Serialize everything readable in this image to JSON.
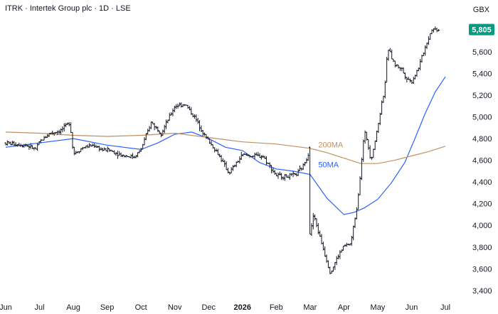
{
  "header": {
    "title": "ITRK · Intertek Group plc · 1D · LSE",
    "currency": "GBX"
  },
  "chart_data": {
    "type": "line",
    "title": "ITRK · Intertek Group plc · 1D · LSE",
    "xlabel": "",
    "ylabel": "",
    "ylim": [
      3340,
      5960
    ],
    "grid": false,
    "y_ticks": [
      "3,400",
      "3,600",
      "3,800",
      "4,000",
      "4,200",
      "4,400",
      "4,600",
      "4,800",
      "5,000",
      "5,200",
      "5,400",
      "5,600"
    ],
    "x_ticks": [
      {
        "label": "Jun",
        "pos": 0,
        "bold": false
      },
      {
        "label": "Jul",
        "pos": 1,
        "bold": false
      },
      {
        "label": "Aug",
        "pos": 2,
        "bold": false
      },
      {
        "label": "Sep",
        "pos": 3,
        "bold": false
      },
      {
        "label": "Oct",
        "pos": 4,
        "bold": false
      },
      {
        "label": "Nov",
        "pos": 5,
        "bold": false
      },
      {
        "label": "Dec",
        "pos": 6,
        "bold": false
      },
      {
        "label": "2026",
        "pos": 7,
        "bold": true
      },
      {
        "label": "Feb",
        "pos": 8,
        "bold": false
      },
      {
        "label": "Mar",
        "pos": 9,
        "bold": false
      },
      {
        "label": "Apr",
        "pos": 10,
        "bold": false
      },
      {
        "label": "May",
        "pos": 11,
        "bold": false
      },
      {
        "label": "Jun",
        "pos": 12,
        "bold": false
      },
      {
        "label": "Jul",
        "pos": 13,
        "bold": false
      }
    ],
    "last_price": "5,805",
    "price_series": {
      "name": "",
      "color": "#131722",
      "x": [
        0,
        0.3,
        0.6,
        0.9,
        1.0,
        1.3,
        1.6,
        1.9,
        2.0,
        2.3,
        2.6,
        2.9,
        3.0,
        3.4,
        3.8,
        4.0,
        4.3,
        4.6,
        5.0,
        5.3,
        5.6,
        5.9,
        6.0,
        6.3,
        6.6,
        7.0,
        7.3,
        7.6,
        8.0,
        8.3,
        8.6,
        8.8,
        9.0,
        9.01,
        9.1,
        9.3,
        9.6,
        9.8,
        10.0,
        10.2,
        10.4,
        10.6,
        10.65,
        10.8,
        11.0,
        11.1,
        11.2,
        11.3,
        11.5,
        11.7,
        11.8,
        12.0,
        12.2,
        12.4,
        12.6,
        12.8
      ],
      "y": [
        4760,
        4750,
        4740,
        4700,
        4770,
        4850,
        4870,
        4950,
        4660,
        4720,
        4740,
        4690,
        4700,
        4650,
        4630,
        4700,
        4950,
        4850,
        5100,
        5120,
        4990,
        4820,
        4780,
        4650,
        4480,
        4650,
        4640,
        4640,
        4460,
        4450,
        4470,
        4550,
        4700,
        3920,
        4100,
        3880,
        3560,
        3700,
        3810,
        3830,
        4200,
        4850,
        4840,
        4600,
        4900,
        5100,
        5250,
        5640,
        5480,
        5450,
        5380,
        5320,
        5450,
        5640,
        5810,
        5805
      ]
    },
    "series": [
      {
        "name": "50MA",
        "color": "#2962ff",
        "x": [
          0,
          1,
          2,
          3,
          4,
          4.5,
          5,
          5.5,
          6,
          6.5,
          7,
          7.5,
          8,
          8.5,
          9,
          9.5,
          10,
          10.3,
          10.6,
          11,
          11.4,
          11.8,
          12.1,
          12.4,
          12.7,
          13.0
        ],
        "y": [
          4720,
          4760,
          4800,
          4740,
          4700,
          4760,
          4840,
          4860,
          4800,
          4720,
          4690,
          4580,
          4520,
          4500,
          4470,
          4250,
          4100,
          4120,
          4160,
          4240,
          4390,
          4580,
          4800,
          5030,
          5230,
          5370
        ]
      },
      {
        "name": "200MA",
        "color": "#c09060",
        "x": [
          0,
          1,
          2,
          3,
          4,
          5,
          6,
          7,
          8,
          9,
          9.5,
          10,
          10.5,
          11,
          11.5,
          12,
          12.5,
          13.0
        ],
        "y": [
          4860,
          4850,
          4830,
          4820,
          4830,
          4850,
          4810,
          4770,
          4750,
          4710,
          4670,
          4620,
          4570,
          4570,
          4600,
          4640,
          4680,
          4730
        ]
      }
    ]
  }
}
